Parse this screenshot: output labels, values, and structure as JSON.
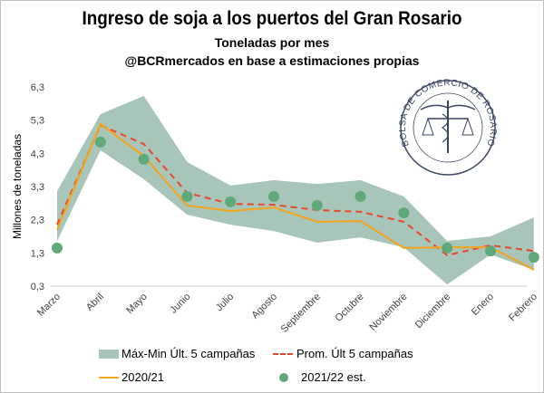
{
  "title": "Ingreso de soja a los puertos del Gran Rosario",
  "subtitle": "Toneladas por mes",
  "source": "@BCRmercados en base a estimaciones propias",
  "logo_text": "BOLSA DE COMERCIO DE ROSARIO",
  "colors": {
    "band": "#a7c5b9",
    "avg": "#e8472a",
    "line2021": "#f5a31a",
    "dots": "#5fa878",
    "grid": "#d9d9d9"
  },
  "chart_data": {
    "type": "line",
    "title": "Ingreso de soja a los puertos del Gran Rosario",
    "ylabel": "Millones de toneladas",
    "xlabel": "",
    "ylim": [
      0.3,
      6.3
    ],
    "yticks": [
      "0,3",
      "1,3",
      "2,3",
      "3,3",
      "4,3",
      "5,3",
      "6,3"
    ],
    "categories": [
      "Marzo",
      "Abril",
      "Mayo",
      "Junio",
      "Julio",
      "Agosto",
      "Septiembre",
      "Octubre",
      "Noviembre",
      "Diciembre",
      "Enero",
      "Febrero"
    ],
    "series": [
      {
        "name": "Máx-Min Últ. 5 campañas",
        "type": "area",
        "max": [
          3.16,
          5.48,
          6.03,
          4.04,
          3.33,
          3.49,
          3.38,
          3.49,
          3.0,
          1.66,
          1.8,
          2.37
        ],
        "min": [
          1.66,
          4.39,
          3.52,
          2.45,
          2.15,
          1.96,
          1.61,
          1.77,
          1.47,
          0.35,
          1.25,
          0.79
        ]
      },
      {
        "name": "Prom. Últ 5 campañas",
        "type": "dashed-line",
        "values": [
          2.15,
          5.15,
          4.58,
          3.11,
          2.78,
          2.75,
          2.59,
          2.54,
          2.24,
          1.23,
          1.53,
          1.36
        ]
      },
      {
        "name": "2020/21",
        "type": "line",
        "values": [
          2.0,
          5.18,
          4.22,
          2.73,
          2.56,
          2.67,
          2.24,
          2.26,
          1.45,
          1.47,
          1.47,
          0.79
        ]
      },
      {
        "name": "2021/22 est.",
        "type": "scatter",
        "values": [
          1.45,
          4.64,
          4.12,
          3.0,
          2.84,
          3.0,
          2.73,
          3.0,
          2.51,
          1.45,
          1.36,
          1.17
        ]
      }
    ],
    "grid": true,
    "legend_position": "bottom"
  }
}
